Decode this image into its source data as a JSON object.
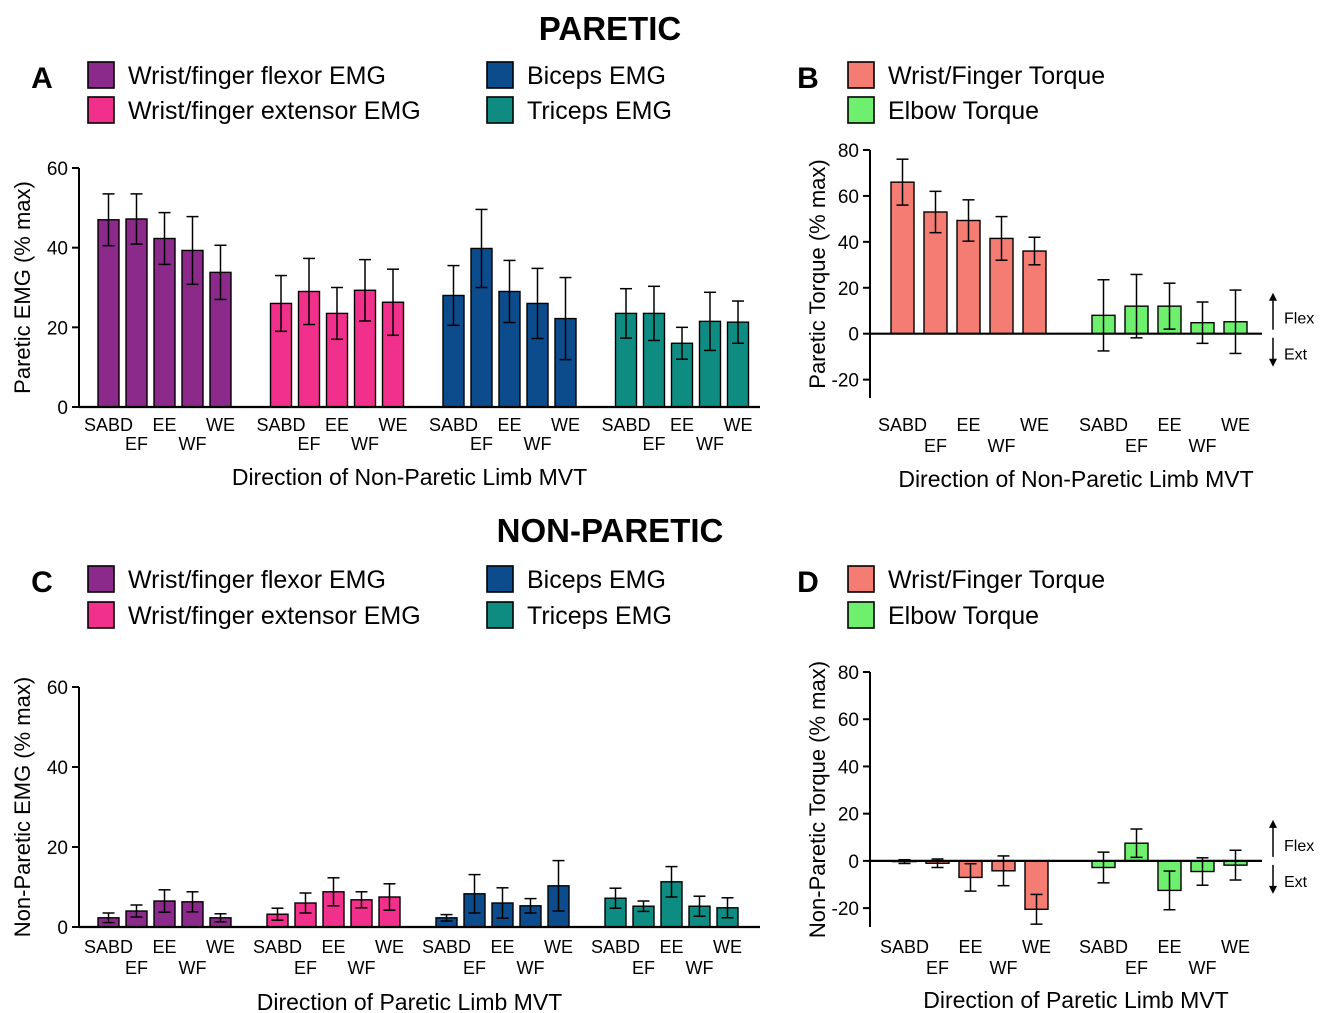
{
  "figure": {
    "section_titles": {
      "paretic": "PARETIC",
      "nonparetic": "NON-PARETIC"
    },
    "direction_labels": {
      "flex": "Flex",
      "ext": "Ext"
    },
    "colors": {
      "wrist_flexor": "#8B2A8B",
      "wrist_extensor": "#F0308A",
      "biceps": "#0D4C8C",
      "triceps": "#0F8C82",
      "wrist_torque": "#F47C72",
      "elbow_torque": "#6EF06E"
    }
  },
  "chart_data": [
    {
      "id": "A",
      "panel": "A",
      "type": "bar",
      "ylabel": "Paretic EMG (% max)",
      "xlabel": "Direction of Non-Paretic Limb MVT",
      "ylim": [
        0,
        60
      ],
      "yticks": [
        0,
        20,
        40,
        60
      ],
      "categories": [
        "SABD",
        "EF",
        "EE",
        "WF",
        "WE"
      ],
      "legend": [
        "Wrist/finger flexor EMG",
        "Wrist/finger extensor EMG",
        "Biceps EMG",
        "Triceps EMG"
      ],
      "series": [
        {
          "name": "Wrist/finger flexor EMG",
          "color": "#8B2A8B",
          "values": [
            47,
            47.2,
            42.3,
            39.3,
            33.8
          ],
          "errors": [
            6.5,
            6.3,
            6.5,
            8.5,
            6.8
          ]
        },
        {
          "name": "Wrist/finger extensor EMG",
          "color": "#F0308A",
          "values": [
            26,
            29,
            23.5,
            29.3,
            26.3
          ],
          "errors": [
            7,
            8.3,
            6.5,
            7.7,
            8.3
          ]
        },
        {
          "name": "Biceps EMG",
          "color": "#0D4C8C",
          "values": [
            28,
            39.8,
            29,
            26,
            22.2
          ],
          "errors": [
            7.5,
            9.8,
            7.8,
            8.8,
            10.3
          ]
        },
        {
          "name": "Triceps EMG",
          "color": "#0F8C82",
          "values": [
            23.5,
            23.5,
            16,
            21.5,
            21.3
          ],
          "errors": [
            6.2,
            6.8,
            4,
            7.3,
            5.3
          ]
        }
      ]
    },
    {
      "id": "B",
      "panel": "B",
      "type": "bar",
      "ylabel": "Paretic Torque (% max)",
      "xlabel": "Direction of Non-Paretic Limb MVT",
      "ylim": [
        -28,
        80
      ],
      "yticks": [
        -20,
        0,
        20,
        40,
        60,
        80
      ],
      "categories": [
        "SABD",
        "EF",
        "EE",
        "WF",
        "WE"
      ],
      "legend": [
        "Wrist/Finger Torque",
        "Elbow Torque"
      ],
      "series": [
        {
          "name": "Wrist/Finger Torque",
          "color": "#F47C72",
          "values": [
            66,
            53,
            49.3,
            41.5,
            36
          ],
          "errors": [
            10,
            9,
            9,
            9.5,
            6
          ]
        },
        {
          "name": "Elbow Torque",
          "color": "#6EF06E",
          "values": [
            8,
            12,
            12,
            4.8,
            5.2
          ],
          "errors": [
            15.5,
            13.8,
            10,
            9,
            13.8
          ]
        }
      ]
    },
    {
      "id": "C",
      "panel": "C",
      "type": "bar",
      "ylabel": "Non-Paretic EMG (% max)",
      "xlabel": "Direction of Paretic Limb MVT",
      "ylim": [
        0,
        60
      ],
      "yticks": [
        0,
        20,
        40,
        60
      ],
      "categories": [
        "SABD",
        "EF",
        "EE",
        "WF",
        "WE"
      ],
      "legend": [
        "Wrist/finger flexor EMG",
        "Wrist/finger extensor EMG",
        "Biceps EMG",
        "Triceps EMG"
      ],
      "series": [
        {
          "name": "Wrist/finger flexor EMG",
          "color": "#8B2A8B",
          "values": [
            2.3,
            4,
            6.5,
            6.3,
            2.3
          ],
          "errors": [
            1.2,
            1.5,
            2.8,
            2.5,
            1
          ]
        },
        {
          "name": "Wrist/finger extensor EMG",
          "color": "#F0308A",
          "values": [
            3.2,
            6,
            8.8,
            6.8,
            7.5
          ],
          "errors": [
            1.5,
            2.5,
            3.5,
            2,
            3.3
          ]
        },
        {
          "name": "Biceps EMG",
          "color": "#0D4C8C",
          "values": [
            2.3,
            8.3,
            6,
            5.3,
            10.3
          ],
          "errors": [
            0.8,
            4.8,
            3.8,
            1.8,
            6.3
          ]
        },
        {
          "name": "Triceps EMG",
          "color": "#0F8C82",
          "values": [
            7.2,
            5.2,
            11.3,
            5.2,
            4.8
          ],
          "errors": [
            2.5,
            1.3,
            3.8,
            2.5,
            2.5
          ]
        }
      ]
    },
    {
      "id": "D",
      "panel": "D",
      "type": "bar",
      "ylabel": "Non-Paretic Torque (% max)",
      "xlabel": "Direction of Paretic Limb MVT",
      "ylim": [
        -28,
        80
      ],
      "yticks": [
        -20,
        0,
        20,
        40,
        60,
        80
      ],
      "categories": [
        "SABD",
        "EF",
        "EE",
        "WF",
        "WE"
      ],
      "legend": [
        "Wrist/Finger Torque",
        "Elbow Torque"
      ],
      "series": [
        {
          "name": "Wrist/Finger Torque",
          "color": "#F47C72",
          "values": [
            -0.3,
            -1,
            -7,
            -4.2,
            -20.5
          ],
          "errors": [
            0.8,
            1.8,
            5.8,
            6.3,
            6.3
          ]
        },
        {
          "name": "Elbow Torque",
          "color": "#6EF06E",
          "values": [
            -2.8,
            7.5,
            -12.5,
            -4.5,
            -1.8
          ],
          "errors": [
            6.5,
            6,
            8.2,
            5.8,
            6.3
          ]
        }
      ]
    }
  ]
}
